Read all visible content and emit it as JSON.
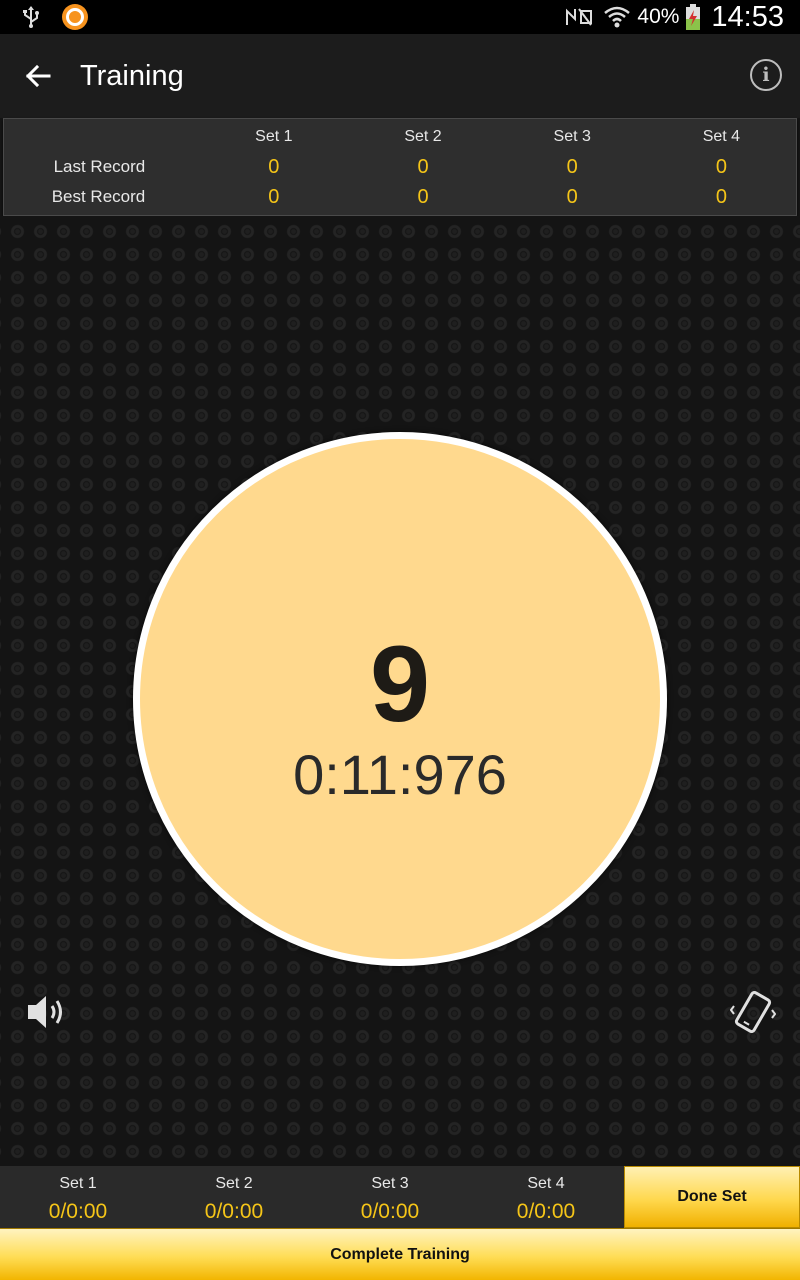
{
  "status_bar": {
    "left_icons": [
      "usb-icon",
      "app-notification-icon"
    ],
    "right_icons": [
      "nfc-muted-icon",
      "wifi-icon",
      "battery-charging-icon"
    ],
    "battery": "40%",
    "time": "14:53"
  },
  "app_bar": {
    "title": "Training",
    "back_icon": "arrow-left-icon",
    "info_icon": "info-icon",
    "info_glyph": "i"
  },
  "records": {
    "headers": [
      "Set 1",
      "Set 2",
      "Set 3",
      "Set 4"
    ],
    "rows": [
      {
        "label": "Last Record",
        "values": [
          "0",
          "0",
          "0",
          "0"
        ]
      },
      {
        "label": "Best Record",
        "values": [
          "0",
          "0",
          "0",
          "0"
        ]
      }
    ]
  },
  "timer": {
    "count": "9",
    "elapsed": "0:11:976"
  },
  "toggles": {
    "sound_icon": "speaker-icon",
    "vibrate_icon": "vibrate-icon"
  },
  "sets_bar": {
    "sets": [
      {
        "name": "Set 1",
        "value": "0/0:00"
      },
      {
        "name": "Set 2",
        "value": "0/0:00"
      },
      {
        "name": "Set 3",
        "value": "0/0:00"
      },
      {
        "name": "Set 4",
        "value": "0/0:00"
      }
    ],
    "done_set_label": "Done Set"
  },
  "complete_training_label": "Complete Training",
  "colors": {
    "accent_yellow": "#f5c518",
    "circle_fill": "#ffd98e",
    "button_gold": "#ffd84d"
  }
}
